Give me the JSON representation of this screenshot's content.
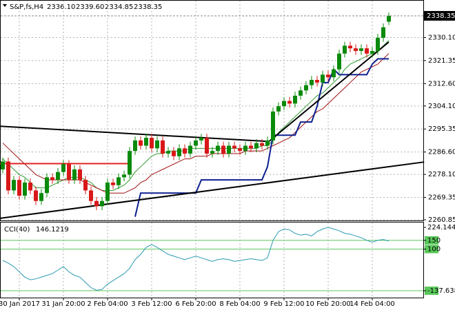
{
  "chart_data": {
    "type": "candlestick",
    "title": "S&P,fs,H4",
    "last_labels": [
      "2336.10",
      "2339.60",
      "2334.85",
      "2338.35"
    ],
    "categories": [
      null,
      null,
      null,
      "30 Jan 2017",
      null,
      null,
      null,
      null,
      null,
      null,
      null,
      "31 Jan 20:00",
      null,
      null,
      null,
      null,
      null,
      null,
      null,
      "2 Feb 04:00",
      null,
      null,
      null,
      null,
      null,
      null,
      null,
      "3 Feb 12:00",
      null,
      null,
      null,
      null,
      null,
      null,
      null,
      "6 Feb 20:00",
      null,
      null,
      null,
      null,
      null,
      null,
      null,
      "8 Feb 04:00",
      null,
      null,
      null,
      null,
      null,
      null,
      null,
      "9 Feb 12:00",
      null,
      null,
      null,
      null,
      null,
      null,
      null,
      "10 Feb 20:00",
      null,
      null,
      null,
      null,
      null,
      null,
      null,
      "14 Feb 04:00",
      null,
      null,
      null
    ],
    "candles": [
      [
        2280,
        2284.5,
        2278.5,
        2283
      ],
      [
        2283,
        2284.5,
        2270.5,
        2272
      ],
      [
        2272,
        2277.5,
        2270.5,
        2276
      ],
      [
        2276,
        2277.5,
        2268.5,
        2270
      ],
      [
        2270,
        2276.5,
        2268.5,
        2275
      ],
      [
        2275,
        2276.5,
        2270.5,
        2272
      ],
      [
        2272,
        2273.5,
        2266.5,
        2268
      ],
      [
        2268,
        2272.5,
        2266.5,
        2271
      ],
      [
        2271,
        2278.5,
        2269.5,
        2277
      ],
      [
        2277,
        2278.5,
        2274.5,
        2276
      ],
      [
        2276,
        2280.5,
        2274.5,
        2279
      ],
      [
        2279,
        2283.5,
        2277.5,
        2282
      ],
      [
        2282,
        2283.5,
        2274.5,
        2276
      ],
      [
        2276,
        2281.5,
        2274.5,
        2280
      ],
      [
        2280,
        2281.5,
        2274.5,
        2276
      ],
      [
        2276,
        2277.5,
        2270.5,
        2272
      ],
      [
        2272,
        2273.5,
        2266.5,
        2268
      ],
      [
        2268,
        2269.5,
        2264.5,
        2266
      ],
      [
        2266,
        2269.5,
        2264.5,
        2268
      ],
      [
        2268,
        2276.5,
        2266.5,
        2275
      ],
      [
        2275,
        2276.5,
        2272.5,
        2274
      ],
      [
        2274,
        2278.5,
        2272.5,
        2277
      ],
      [
        2277,
        2279.5,
        2275.5,
        2278
      ],
      [
        2278,
        2288.5,
        2276.5,
        2287
      ],
      [
        2287,
        2292.5,
        2285.5,
        2291
      ],
      [
        2291,
        2292.5,
        2287.5,
        2289
      ],
      [
        2289,
        2293.5,
        2287.5,
        2292
      ],
      [
        2292,
        2293.5,
        2286.5,
        2288
      ],
      [
        2288,
        2292.5,
        2286.5,
        2291
      ],
      [
        2291,
        2292.5,
        2284.5,
        2286
      ],
      [
        2286,
        2288.5,
        2284.5,
        2287
      ],
      [
        2287,
        2288.5,
        2283.5,
        2285
      ],
      [
        2285,
        2289.5,
        2283.5,
        2288
      ],
      [
        2288,
        2289.5,
        2284.5,
        2286
      ],
      [
        2286,
        2290.5,
        2284.5,
        2289
      ],
      [
        2289,
        2292.5,
        2287.5,
        2291
      ],
      [
        2291,
        2293.5,
        2289.5,
        2292
      ],
      [
        2292,
        2293.5,
        2284.5,
        2286
      ],
      [
        2286,
        2288.5,
        2284.5,
        2287
      ],
      [
        2287,
        2290.5,
        2285.5,
        2289
      ],
      [
        2289,
        2290.5,
        2284.5,
        2286
      ],
      [
        2286,
        2290.5,
        2284.5,
        2289
      ],
      [
        2289,
        2290.5,
        2286.5,
        2288
      ],
      [
        2288,
        2289.5,
        2285.5,
        2287
      ],
      [
        2287,
        2290.5,
        2285.5,
        2289
      ],
      [
        2289,
        2290.5,
        2286.5,
        2288
      ],
      [
        2288,
        2291.5,
        2286.5,
        2290
      ],
      [
        2290,
        2291.5,
        2287.5,
        2289
      ],
      [
        2289,
        2292.5,
        2287.5,
        2291
      ],
      [
        2291,
        2303.5,
        2289.5,
        2302
      ],
      [
        2302,
        2305.5,
        2300.5,
        2304
      ],
      [
        2304,
        2307.5,
        2302.5,
        2306
      ],
      [
        2306,
        2307.5,
        2303.5,
        2305
      ],
      [
        2305,
        2309.5,
        2303.5,
        2308
      ],
      [
        2308,
        2311.5,
        2306.5,
        2310
      ],
      [
        2310,
        2313.5,
        2308.5,
        2312
      ],
      [
        2312,
        2315.5,
        2310.5,
        2314
      ],
      [
        2314,
        2315.5,
        2311.5,
        2313
      ],
      [
        2313,
        2317.5,
        2311.5,
        2316
      ],
      [
        2316,
        2317.5,
        2313.5,
        2315
      ],
      [
        2315,
        2319.5,
        2313.5,
        2318
      ],
      [
        2318,
        2325.5,
        2316.5,
        2324
      ],
      [
        2324,
        2328.5,
        2322.5,
        2327
      ],
      [
        2327,
        2328.5,
        2324.5,
        2326
      ],
      [
        2326,
        2327.5,
        2323.5,
        2325
      ],
      [
        2325,
        2327.5,
        2323.5,
        2326
      ],
      [
        2326,
        2327.5,
        2322.5,
        2324
      ],
      [
        2324,
        2326.5,
        2322.5,
        2325
      ],
      [
        2325,
        2331.5,
        2323.5,
        2330
      ],
      [
        2330,
        2335.5,
        2328.5,
        2334
      ],
      [
        2336.1,
        2339.6,
        2334.85,
        2338.35
      ]
    ],
    "colors": {
      "up": "#0a8a0a",
      "down": "#d81818"
    },
    "ylim": [
      2260.6,
      2344.1
    ],
    "yticks": [
      {
        "value": 2330.1,
        "label": "2330.10"
      },
      2321.35,
      {
        "value": 2312.6,
        "label": "2312.60"
      },
      {
        "value": 2304.1,
        "label": "2304.10"
      },
      2295.35,
      {
        "value": 2286.6,
        "label": "2286.60"
      },
      {
        "value": 2278.1,
        "label": "2278.10"
      },
      2269.35,
      2260.85
    ],
    "grid": true,
    "lines": [
      {
        "color": "#2e9a2e",
        "values": [
          2284,
          2282,
          2280,
          2278,
          2277,
          2275,
          2273,
          2273,
          2273,
          2274,
          2275,
          2276,
          2277,
          2277,
          2277,
          2276,
          2275,
          2273,
          2272,
          2272,
          2272,
          2273,
          2274,
          2276,
          2279,
          2281,
          2283,
          2285,
          2286,
          2286,
          2287,
          2287,
          2287,
          2287,
          2288,
          2288,
          2288,
          2288,
          2288,
          2288,
          2288,
          2288,
          2288,
          2288,
          2288,
          2288,
          2288,
          2289,
          2289,
          2291,
          2294,
          2296,
          2298,
          2300,
          2302,
          2304,
          2306,
          2308,
          2309,
          2311,
          2313,
          2315,
          2318,
          2320,
          2321,
          2322,
          2323,
          2324,
          2325,
          2327,
          2329
        ]
      },
      {
        "color": "#a01010",
        "values": [
          2290,
          2288,
          2286,
          2284,
          2282,
          2280,
          2278,
          2277,
          2276,
          2276,
          2276,
          2276,
          2276,
          2276,
          2276,
          2275,
          2274,
          2273,
          2272,
          2271,
          2271,
          2271,
          2271,
          2272,
          2273,
          2275,
          2276,
          2278,
          2279,
          2280,
          2281,
          2282,
          2283,
          2284,
          2284,
          2285,
          2285,
          2285,
          2286,
          2286,
          2286,
          2286,
          2286,
          2286,
          2287,
          2287,
          2287,
          2287,
          2288,
          2289,
          2290,
          2291,
          2292,
          2294,
          2296,
          2298,
          2300,
          2302,
          2303,
          2305,
          2307,
          2309,
          2311,
          2313,
          2315,
          2317,
          2318,
          2319,
          2320,
          2322,
          2324
        ]
      },
      {
        "color": "#0b1f8f",
        "values": [
          null,
          null,
          null,
          null,
          null,
          null,
          null,
          null,
          null,
          null,
          null,
          null,
          null,
          null,
          null,
          null,
          null,
          null,
          null,
          null,
          null,
          null,
          null,
          null,
          2262,
          2271,
          2271,
          2271,
          2271,
          2271,
          2271,
          2271,
          2271,
          2271,
          2271,
          2271,
          2276,
          2276,
          2276,
          2276,
          2276,
          2276,
          2276,
          2276,
          2276,
          2276,
          2276,
          2276,
          2281,
          2293,
          2293,
          2293,
          2293,
          2293,
          2298,
          2298,
          2298,
          2304,
          2313,
          2313,
          2318,
          2316,
          2316,
          2316,
          2316,
          2316,
          2316,
          2320,
          2322,
          2322,
          2322
        ]
      }
    ],
    "trendlines": [
      {
        "color": "#000000",
        "x": [
          -0.5,
          48.25
        ],
        "values": [
          2296.4,
          2290.6
        ]
      },
      {
        "color": "#000000",
        "x": [
          -0.5,
          76.4
        ],
        "values": [
          2261.4,
          2282.8
        ]
      },
      {
        "color": "#000000",
        "x": [
          48.25,
          70
        ],
        "values": [
          2290.6,
          2328.4
        ]
      },
      {
        "color": "#e02020",
        "x": [
          -0.5,
          22.9
        ],
        "values": [
          2282.2,
          2282.2
        ]
      }
    ],
    "indicator": {
      "title": "CCI(40)",
      "color": "#2a9ab0",
      "values": [
        35,
        20,
        0,
        -30,
        -60,
        -75,
        -70,
        -60,
        -50,
        -40,
        -20,
        0,
        -30,
        -50,
        -60,
        -90,
        -120,
        -135,
        -130,
        -100,
        -80,
        -60,
        -40,
        -10,
        40,
        70,
        110,
        126,
        110,
        90,
        70,
        60,
        50,
        40,
        50,
        60,
        50,
        40,
        30,
        40,
        45,
        40,
        30,
        35,
        40,
        45,
        40,
        35,
        50,
        150,
        200,
        215,
        210,
        190,
        180,
        185,
        175,
        200,
        215,
        224,
        215,
        205,
        190,
        185,
        175,
        165,
        150,
        140,
        150,
        155,
        146.1219
      ],
      "ylim": [
        -177,
        252
      ],
      "yticks": [
        224.1445,
        150,
        100,
        -137.6382
      ],
      "levels": [
        150,
        100,
        -137.6382
      ],
      "level_color": "#5ac85a"
    }
  }
}
